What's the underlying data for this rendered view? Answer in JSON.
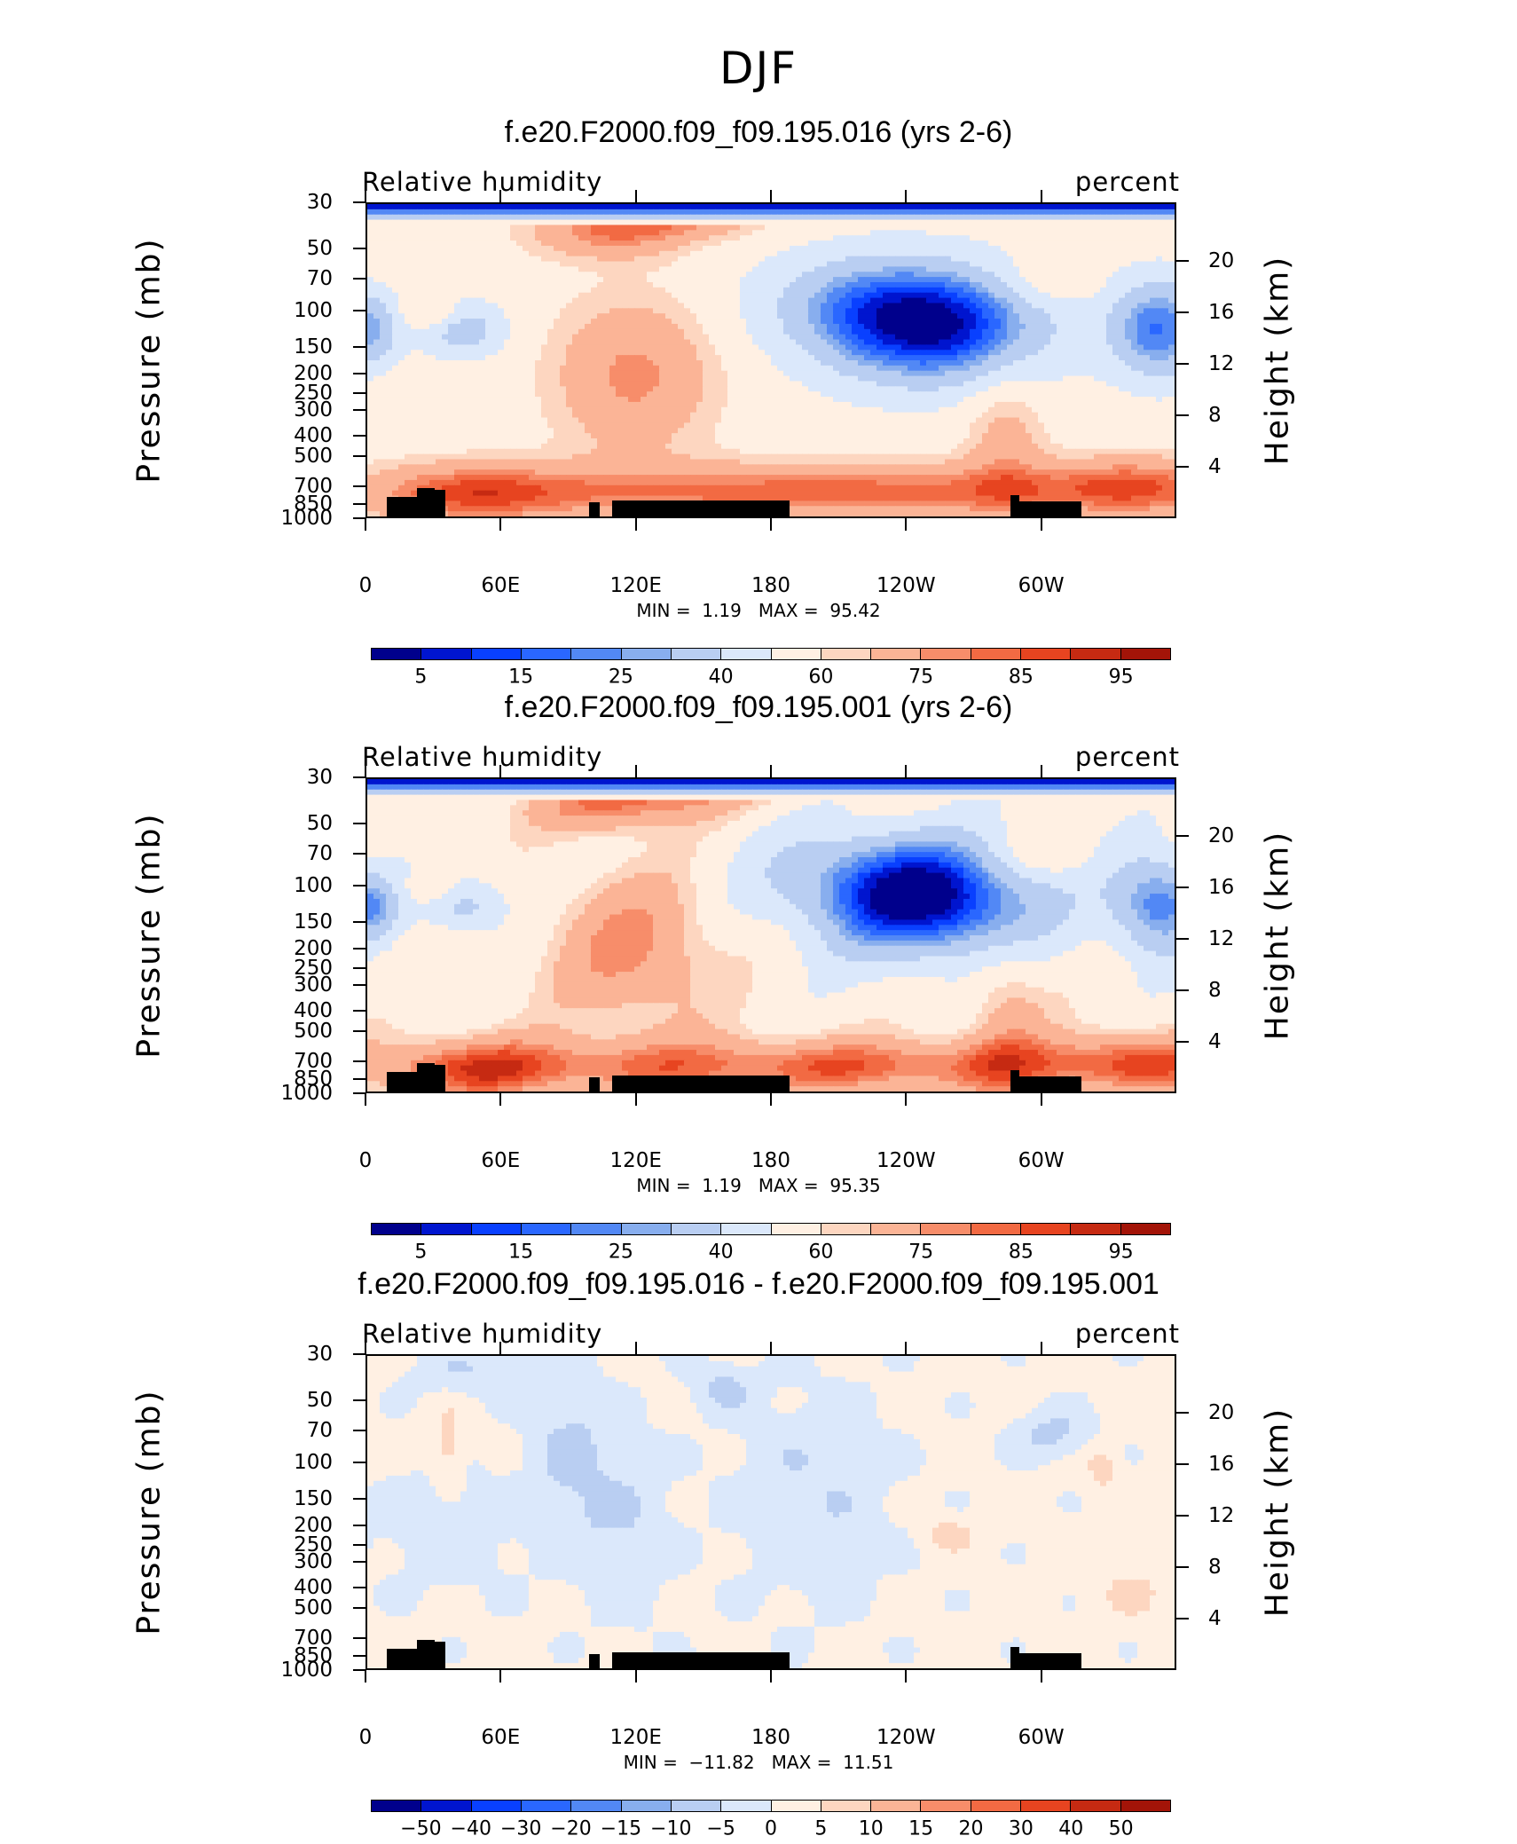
{
  "figure": {
    "title": "DJF"
  },
  "colors": {
    "absolute": [
      "#00008c",
      "#0015cf",
      "#0940ff",
      "#2a67ff",
      "#5288f5",
      "#88aeee",
      "#b9cef2",
      "#dbe8fb",
      "#fff0e3",
      "#fdd6c0",
      "#fbb496",
      "#f78d6a",
      "#f26a43",
      "#e74420",
      "#c62a12",
      "#a31408",
      "#7a0000"
    ],
    "difference": [
      "#00008c",
      "#0015cf",
      "#0940ff",
      "#2a67ff",
      "#5288f5",
      "#88aeee",
      "#b9cef2",
      "#dbe8fb",
      "#fff0e3",
      "#fdd6c0",
      "#fbb496",
      "#f78d6a",
      "#f26a43",
      "#e74420",
      "#c62a12",
      "#a31408",
      "#7a0000"
    ]
  },
  "chart_data": [
    {
      "type": "contour",
      "title": "f.e20.F2000.f09_f09.195.016 (yrs 2-6)",
      "variable": "Relative humidity",
      "units": "percent",
      "ylabel_left": "Pressure (mb)",
      "ylabel_right": "Height (km)",
      "pressure_ticks": [
        "30",
        "50",
        "70",
        "100",
        "150",
        "200",
        "250",
        "300",
        "400",
        "500",
        "700",
        "850",
        "1000"
      ],
      "height_ticks": [
        "20",
        "16",
        "12",
        "8",
        "4"
      ],
      "height_values": [
        20,
        16,
        12,
        8,
        4
      ],
      "x_ticks": [
        "0",
        "60E",
        "120E",
        "180",
        "120W",
        "60W"
      ],
      "x_values": [
        0,
        60,
        120,
        180,
        240,
        300
      ],
      "xlim": [
        0,
        360
      ],
      "ylim": [
        1000,
        30
      ],
      "y_scale": "log",
      "min_label": "MIN =",
      "min_value": "1.19",
      "max_label": "MAX =",
      "max_value": "95.42",
      "colorbar_labels": [
        "5",
        "15",
        "25",
        "40",
        "60",
        "75",
        "85",
        "95"
      ],
      "levels": [
        5,
        10,
        15,
        20,
        25,
        30,
        40,
        50,
        60,
        65,
        75,
        80,
        85,
        90,
        95
      ],
      "palette": "absolute"
    },
    {
      "type": "contour",
      "title": "f.e20.F2000.f09_f09.195.001 (yrs 2-6)",
      "variable": "Relative humidity",
      "units": "percent",
      "ylabel_left": "Pressure (mb)",
      "ylabel_right": "Height (km)",
      "pressure_ticks": [
        "30",
        "50",
        "70",
        "100",
        "150",
        "200",
        "250",
        "300",
        "400",
        "500",
        "700",
        "850",
        "1000"
      ],
      "height_ticks": [
        "20",
        "16",
        "12",
        "8",
        "4"
      ],
      "height_values": [
        20,
        16,
        12,
        8,
        4
      ],
      "x_ticks": [
        "0",
        "60E",
        "120E",
        "180",
        "120W",
        "60W"
      ],
      "x_values": [
        0,
        60,
        120,
        180,
        240,
        300
      ],
      "xlim": [
        0,
        360
      ],
      "ylim": [
        1000,
        30
      ],
      "y_scale": "log",
      "min_label": "MIN =",
      "min_value": "1.19",
      "max_label": "MAX =",
      "max_value": "95.35",
      "colorbar_labels": [
        "5",
        "15",
        "25",
        "40",
        "60",
        "75",
        "85",
        "95"
      ],
      "levels": [
        5,
        10,
        15,
        20,
        25,
        30,
        40,
        50,
        60,
        65,
        75,
        80,
        85,
        90,
        95
      ],
      "palette": "absolute"
    },
    {
      "type": "contour",
      "title": "f.e20.F2000.f09_f09.195.016 - f.e20.F2000.f09_f09.195.001",
      "variable": "Relative humidity",
      "units": "percent",
      "ylabel_left": "Pressure (mb)",
      "ylabel_right": "Height (km)",
      "pressure_ticks": [
        "30",
        "50",
        "70",
        "100",
        "150",
        "200",
        "250",
        "300",
        "400",
        "500",
        "700",
        "850",
        "1000"
      ],
      "height_ticks": [
        "20",
        "16",
        "12",
        "8",
        "4"
      ],
      "height_values": [
        20,
        16,
        12,
        8,
        4
      ],
      "x_ticks": [
        "0",
        "60E",
        "120E",
        "180",
        "120W",
        "60W"
      ],
      "x_values": [
        0,
        60,
        120,
        180,
        240,
        300
      ],
      "xlim": [
        0,
        360
      ],
      "ylim": [
        1000,
        30
      ],
      "y_scale": "log",
      "min_label": "MIN =",
      "min_value": "−11.82",
      "max_label": "MAX =",
      "max_value": "11.51",
      "colorbar_labels": [
        "−50",
        "−40",
        "−30",
        "−20",
        "−15",
        "−10",
        "−5",
        "0",
        "5",
        "10",
        "15",
        "20",
        "30",
        "40",
        "50"
      ],
      "levels": [
        -50,
        -40,
        -30,
        -20,
        -15,
        -10,
        -5,
        0,
        5,
        10,
        15,
        20,
        30,
        40,
        50
      ],
      "palette": "difference"
    }
  ]
}
